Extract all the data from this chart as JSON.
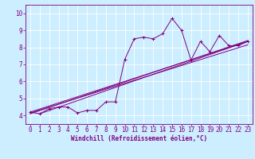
{
  "title": "",
  "xlabel": "Windchill (Refroidissement éolien,°C)",
  "bg_color": "#cceeff",
  "line_color": "#800080",
  "grid_color": "#ffffff",
  "xlim": [
    -0.5,
    23.5
  ],
  "ylim": [
    3.5,
    10.5
  ],
  "xticks": [
    0,
    1,
    2,
    3,
    4,
    5,
    6,
    7,
    8,
    9,
    10,
    11,
    12,
    13,
    14,
    15,
    16,
    17,
    18,
    19,
    20,
    21,
    22,
    23
  ],
  "yticks": [
    4,
    5,
    6,
    7,
    8,
    9,
    10
  ],
  "series": [
    [
      0,
      4.2
    ],
    [
      1,
      4.1
    ],
    [
      2,
      4.4
    ],
    [
      3,
      4.5
    ],
    [
      4,
      4.5
    ],
    [
      5,
      4.15
    ],
    [
      6,
      4.3
    ],
    [
      7,
      4.3
    ],
    [
      8,
      4.8
    ],
    [
      9,
      4.8
    ],
    [
      10,
      7.3
    ],
    [
      11,
      8.5
    ],
    [
      12,
      8.6
    ],
    [
      13,
      8.5
    ],
    [
      14,
      8.8
    ],
    [
      15,
      9.7
    ],
    [
      16,
      9.0
    ],
    [
      17,
      7.25
    ],
    [
      18,
      8.35
    ],
    [
      19,
      7.75
    ],
    [
      20,
      8.7
    ],
    [
      21,
      8.1
    ],
    [
      22,
      8.1
    ],
    [
      23,
      8.35
    ]
  ],
  "regression_lines": [
    {
      "x0": 0,
      "y0": 4.2,
      "x1": 23,
      "y1": 8.35
    },
    {
      "x0": 0,
      "y0": 4.15,
      "x1": 23,
      "y1": 8.15
    },
    {
      "x0": 0,
      "y0": 4.1,
      "x1": 23,
      "y1": 8.4
    },
    {
      "x0": 1,
      "y0": 4.1,
      "x1": 23,
      "y1": 8.35
    }
  ],
  "tick_fontsize": 5.5,
  "xlabel_fontsize": 5.5,
  "linewidth": 0.7,
  "markersize": 2.5
}
